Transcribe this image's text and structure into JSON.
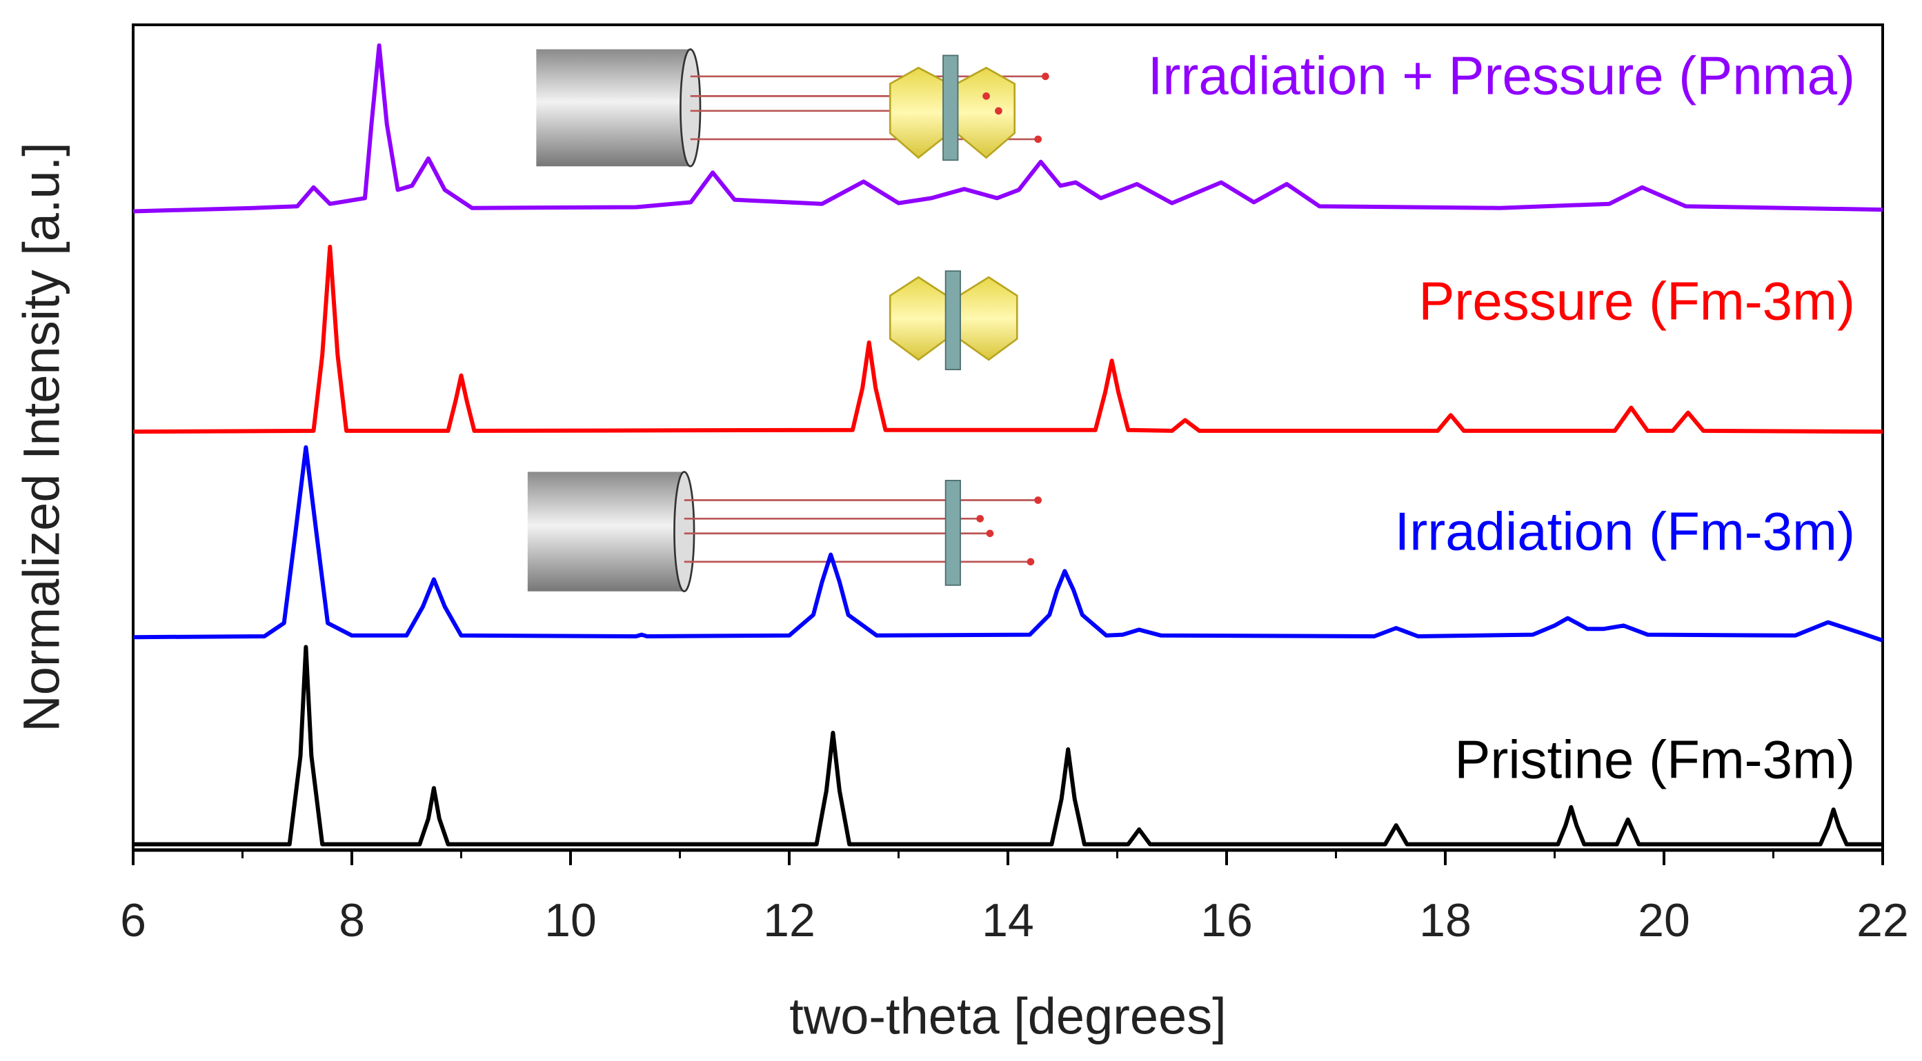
{
  "chart_data": {
    "type": "line",
    "x_label": "two-theta [degrees]",
    "y_label": "Normalized Intensity [a.u.]",
    "xlim": [
      6,
      22
    ],
    "xticks": [
      6,
      8,
      10,
      12,
      14,
      16,
      18,
      20,
      22
    ],
    "xminorticks": [
      7,
      9,
      11,
      13,
      15,
      17,
      19,
      21
    ],
    "ylim": [
      0,
      100
    ],
    "series": [
      {
        "name": "Irradiation + Pressure (Pnma)",
        "color": "#8f00ff",
        "x": [
          6,
          7.1,
          7.5,
          7.65,
          7.8,
          8.12,
          8.18,
          8.25,
          8.32,
          8.42,
          8.55,
          8.7,
          8.85,
          9.1,
          10.6,
          11.1,
          11.3,
          11.5,
          12.3,
          12.68,
          13.0,
          13.3,
          13.6,
          13.9,
          14.1,
          14.3,
          14.48,
          14.62,
          14.85,
          15.18,
          15.5,
          15.95,
          16.25,
          16.55,
          16.85,
          18.5,
          19.5,
          19.8,
          20.2,
          22
        ],
        "values": [
          77.4,
          77.8,
          78.0,
          80.3,
          78.3,
          79,
          88,
          97.5,
          88,
          80,
          80.5,
          83.8,
          80,
          77.8,
          77.9,
          78.5,
          82.1,
          78.8,
          78.3,
          81.0,
          78.4,
          79.0,
          80.1,
          79.0,
          80,
          83.4,
          80.5,
          80.9,
          79.0,
          80.7,
          78.4,
          80.9,
          78.5,
          80.7,
          78.0,
          77.8,
          78.3,
          80.3,
          78.0,
          77.6
        ]
      },
      {
        "name": "Pressure (Fm-3m)",
        "color": "#ff0000",
        "x": [
          6,
          7.65,
          7.73,
          7.8,
          7.87,
          7.95,
          8.88,
          8.95,
          9.0,
          9.05,
          9.12,
          12.58,
          12.67,
          12.73,
          12.79,
          12.88,
          14.8,
          14.89,
          14.95,
          15.01,
          15.1,
          15.5,
          15.62,
          15.75,
          17.93,
          18.05,
          18.17,
          19.55,
          19.7,
          19.85,
          20.08,
          20.22,
          20.36,
          22
        ],
        "values": [
          50.7,
          50.8,
          60,
          73.1,
          60,
          50.8,
          50.8,
          54.5,
          57.5,
          54.5,
          50.8,
          50.9,
          56,
          61.5,
          56,
          50.9,
          50.9,
          55.5,
          59.3,
          55.5,
          50.9,
          50.8,
          52.1,
          50.8,
          50.8,
          52.7,
          50.8,
          50.8,
          53.6,
          50.8,
          50.8,
          53,
          50.8,
          50.7
        ]
      },
      {
        "name": "Irradiation (Fm-3m)",
        "color": "#0000ff",
        "x": [
          6,
          7.2,
          7.38,
          7.48,
          7.58,
          7.68,
          7.78,
          8.0,
          8.5,
          8.65,
          8.75,
          8.85,
          9.0,
          10.6,
          10.65,
          10.7,
          12.0,
          12.22,
          12.3,
          12.38,
          12.46,
          12.54,
          12.8,
          14.2,
          14.38,
          14.45,
          14.52,
          14.6,
          14.68,
          14.9,
          15.05,
          15.2,
          15.4,
          17.35,
          17.55,
          17.75,
          18.8,
          19.0,
          19.12,
          19.3,
          19.45,
          19.63,
          19.85,
          21.2,
          21.5,
          21.8,
          22
        ],
        "values": [
          25.8,
          25.9,
          27.5,
          38,
          48.8,
          38,
          27.5,
          26.0,
          26.0,
          29.5,
          32.8,
          29.5,
          26.0,
          25.9,
          26.1,
          25.9,
          26.0,
          28.5,
          32.5,
          35.8,
          32.5,
          28.5,
          26.0,
          26.1,
          28.5,
          31.5,
          33.8,
          31.5,
          28.5,
          26.0,
          26.1,
          26.7,
          26.0,
          25.9,
          26.9,
          25.9,
          26.1,
          27.2,
          28.1,
          26.8,
          26.8,
          27.2,
          26.1,
          26.0,
          27.6,
          26.3,
          25.4
        ]
      },
      {
        "name": "Pristine (Fm-3m)",
        "color": "#000000",
        "x": [
          6,
          7.43,
          7.53,
          7.58,
          7.63,
          7.73,
          8.62,
          8.7,
          8.75,
          8.8,
          8.88,
          12.25,
          12.34,
          12.4,
          12.46,
          12.55,
          14.4,
          14.49,
          14.55,
          14.61,
          14.7,
          15.1,
          15.2,
          15.3,
          17.45,
          17.55,
          17.65,
          19.03,
          19.1,
          19.15,
          19.2,
          19.27,
          19.57,
          19.67,
          19.77,
          21.43,
          21.5,
          21.55,
          21.6,
          21.67,
          22
        ],
        "values": [
          0.7,
          0.7,
          11.4,
          24.6,
          11.4,
          0.7,
          0.7,
          3.8,
          7.5,
          3.8,
          0.7,
          0.7,
          7.2,
          14.2,
          7.2,
          0.7,
          0.7,
          6.2,
          12.2,
          6.2,
          0.7,
          0.7,
          2.5,
          0.7,
          0.7,
          3.0,
          0.7,
          0.7,
          3.0,
          5.2,
          3.0,
          0.7,
          0.7,
          3.7,
          0.7,
          0.7,
          2.8,
          4.9,
          2.8,
          0.7,
          0.7
        ]
      }
    ]
  }
}
